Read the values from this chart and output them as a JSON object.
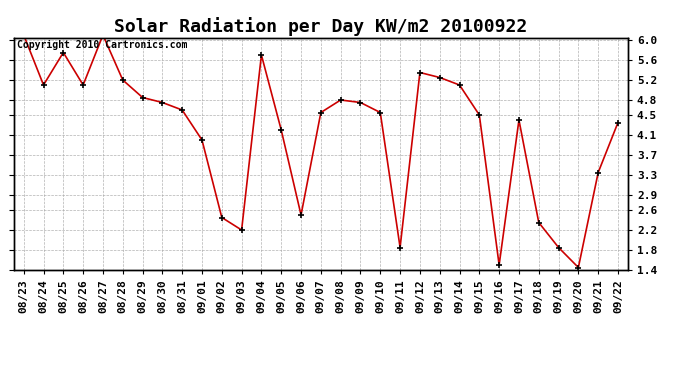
{
  "title": "Solar Radiation per Day KW/m2 20100922",
  "copyright": "Copyright 2010 Cartronics.com",
  "dates": [
    "08/23",
    "08/24",
    "08/25",
    "08/26",
    "08/27",
    "08/28",
    "08/29",
    "08/30",
    "08/31",
    "09/01",
    "09/02",
    "09/03",
    "09/04",
    "09/05",
    "09/06",
    "09/07",
    "09/08",
    "09/09",
    "09/10",
    "09/11",
    "09/12",
    "09/13",
    "09/14",
    "09/15",
    "09/16",
    "09/17",
    "09/18",
    "09/19",
    "09/20",
    "09/21",
    "09/22"
  ],
  "values": [
    6.1,
    5.1,
    5.75,
    5.1,
    6.1,
    5.2,
    4.85,
    4.75,
    4.6,
    4.0,
    2.45,
    2.2,
    5.7,
    4.2,
    2.5,
    4.55,
    4.8,
    4.75,
    4.55,
    1.85,
    5.35,
    5.25,
    5.1,
    4.5,
    1.5,
    4.4,
    2.35,
    1.85,
    1.45,
    3.35,
    4.35
  ],
  "line_color": "#cc0000",
  "marker": "+",
  "marker_color": "#000000",
  "marker_size": 5,
  "ylim": [
    1.4,
    6.05
  ],
  "yticks": [
    1.4,
    1.8,
    2.2,
    2.6,
    2.9,
    3.3,
    3.7,
    4.1,
    4.5,
    4.8,
    5.2,
    5.6,
    6.0
  ],
  "bg_color": "#ffffff",
  "grid_color": "#aaaaaa",
  "title_fontsize": 13,
  "copyright_fontsize": 7,
  "tick_labelsize": 8
}
